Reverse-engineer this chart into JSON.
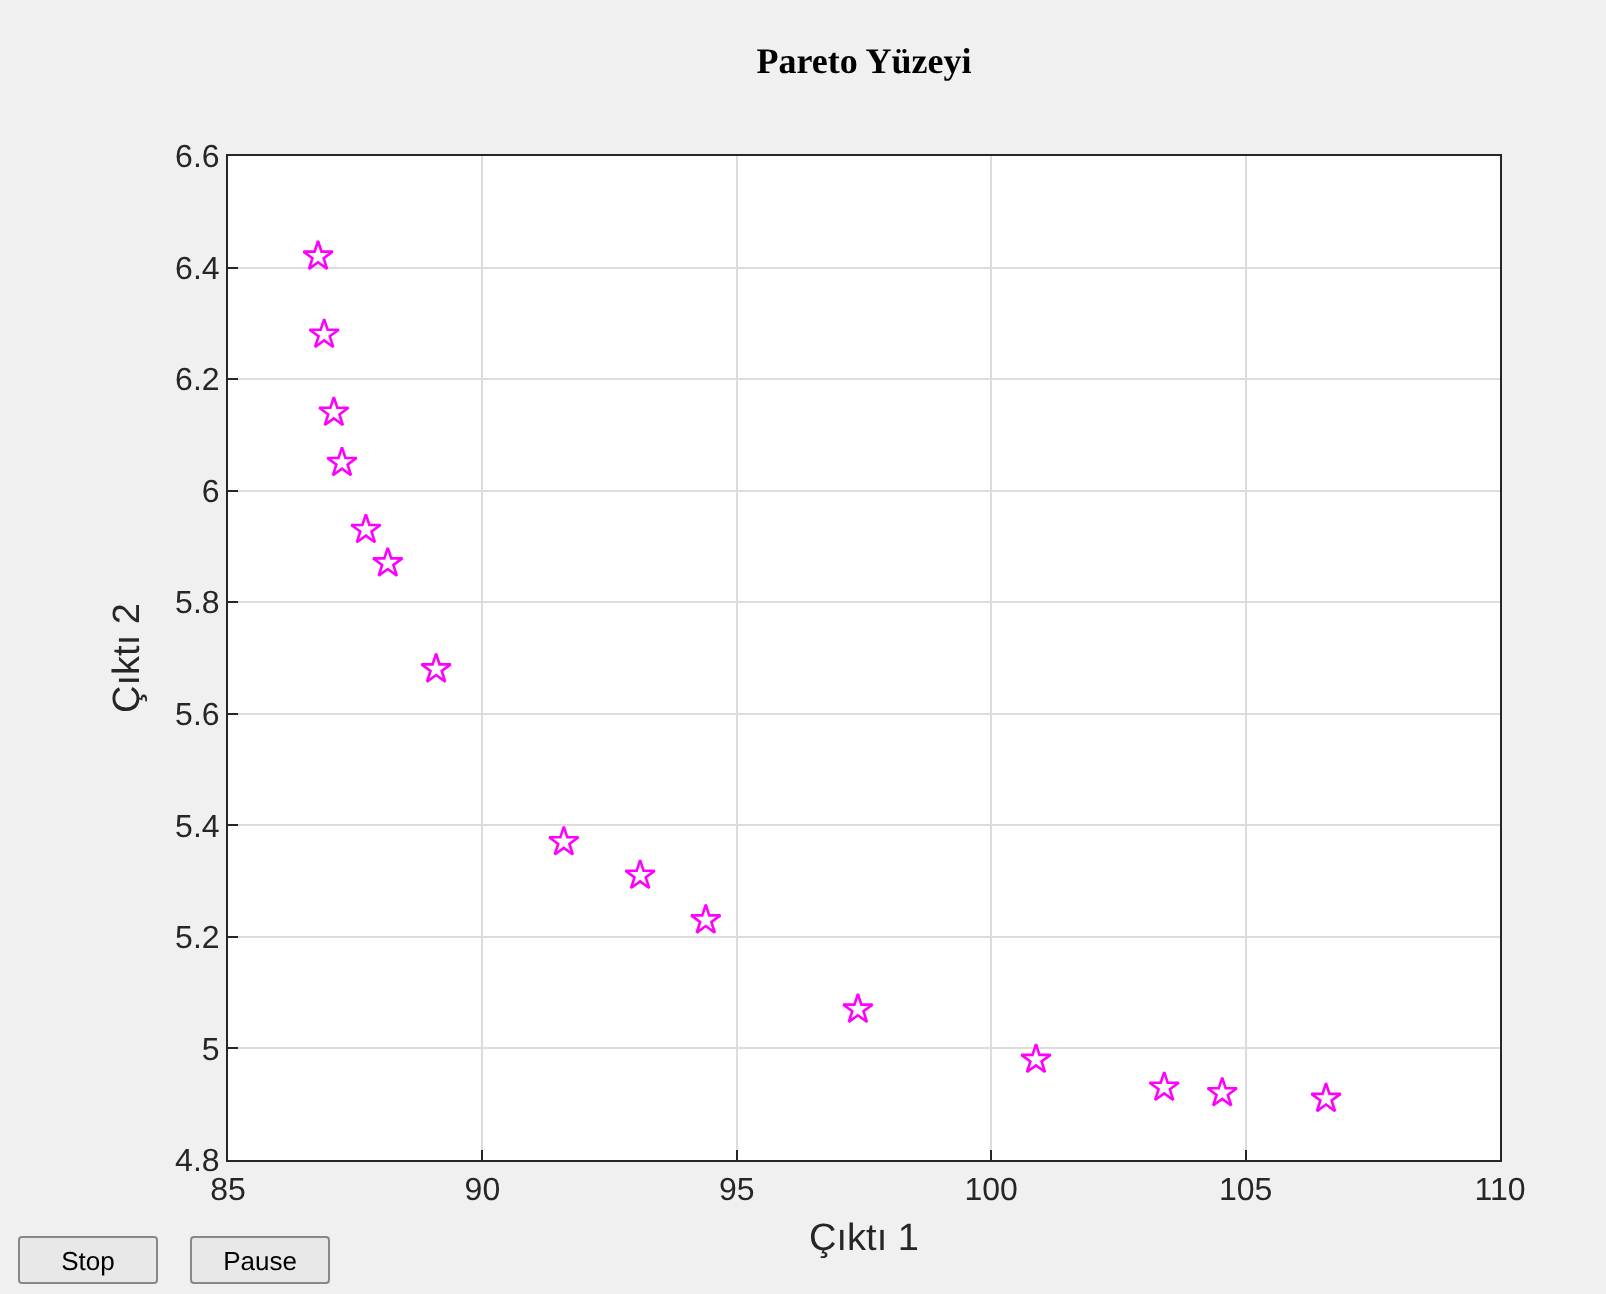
{
  "chart_data": {
    "type": "scatter",
    "title": "Pareto Yüzeyi",
    "xlabel": "Çıktı 1",
    "ylabel": "Çıktı 2",
    "x": [
      86.77,
      86.89,
      87.08,
      87.24,
      87.71,
      88.14,
      89.09,
      91.6,
      93.1,
      94.39,
      97.38,
      100.88,
      103.4,
      104.54,
      106.58
    ],
    "series": [
      {
        "color": "#ff00ff",
        "values": [
          6.42,
          6.28,
          6.14,
          6.05,
          5.93,
          5.87,
          5.68,
          5.37,
          5.31,
          5.23,
          5.07,
          4.98,
          4.93,
          4.92,
          4.91
        ]
      }
    ],
    "xlim": [
      85,
      110
    ],
    "xticks": [
      85,
      90,
      95,
      100,
      105,
      110
    ],
    "ylim": [
      4.8,
      6.6
    ],
    "yticks": [
      4.8,
      5,
      5.2,
      5.4,
      5.6,
      5.8,
      6,
      6.2,
      6.4,
      6.6
    ],
    "grid": true,
    "marker": "star",
    "annotations": [
      "Stop",
      "Pause"
    ]
  }
}
